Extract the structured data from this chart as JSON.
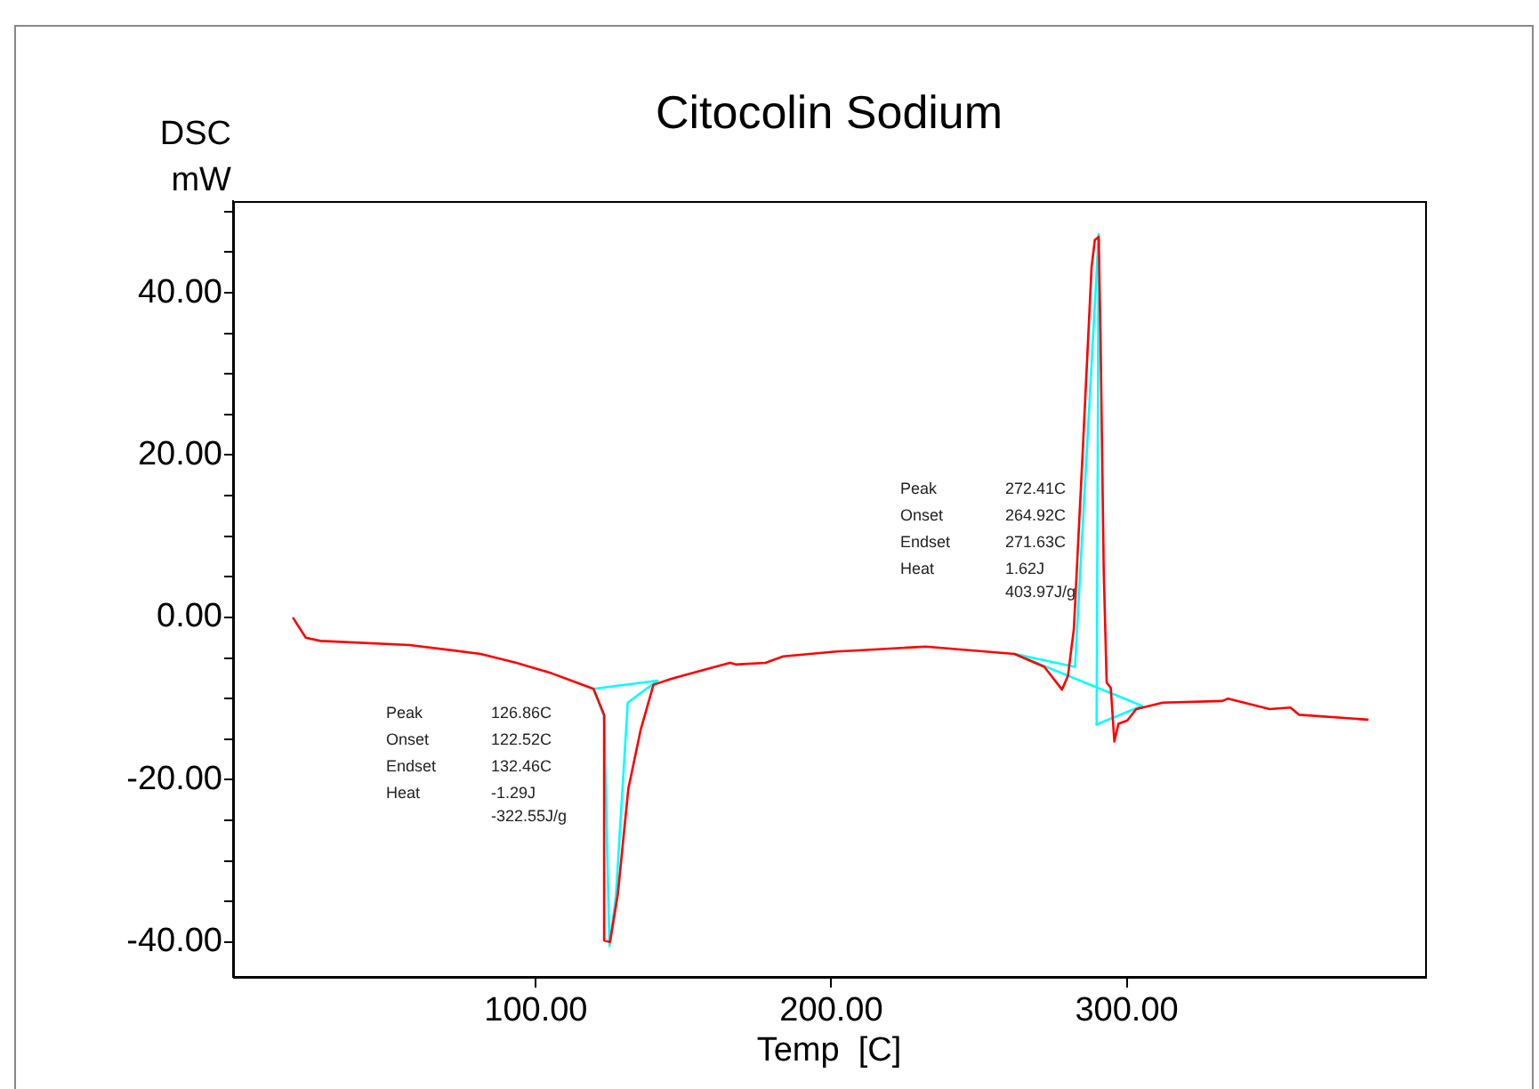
{
  "chart_data": {
    "type": "line",
    "title": "Citocolin Sodium",
    "xlabel": "Temp  [C]",
    "ylabel": "DSC\nmW",
    "xlim": [
      -2.5,
      401
    ],
    "xticks": [
      {
        "value": 100,
        "label": "100.00"
      },
      {
        "value": 200,
        "label": "200.00"
      },
      {
        "value": 300,
        "label": "300.00"
      }
    ],
    "ylim": [
      -44.3,
      51.3
    ],
    "yticks": [
      {
        "value": -40,
        "label": "-40.00"
      },
      {
        "value": -35,
        "label": null
      },
      {
        "value": -30,
        "label": null
      },
      {
        "value": -25,
        "label": null
      },
      {
        "value": -20,
        "label": "-20.00"
      },
      {
        "value": -15,
        "label": null
      },
      {
        "value": -10,
        "label": null
      },
      {
        "value": -5,
        "label": null
      },
      {
        "value": 0,
        "label": "0.00"
      },
      {
        "value": 5,
        "label": null
      },
      {
        "value": 10,
        "label": null
      },
      {
        "value": 15,
        "label": null
      },
      {
        "value": 20,
        "label": "20.00"
      },
      {
        "value": 25,
        "label": null
      },
      {
        "value": 30,
        "label": null
      },
      {
        "value": 35,
        "label": null
      },
      {
        "value": 40,
        "label": "40.00"
      },
      {
        "value": 45,
        "label": null
      },
      {
        "value": 50,
        "label": null
      }
    ],
    "grid": false,
    "legend": false,
    "marker": "none",
    "line_style": "solid",
    "series": [
      {
        "color": "#ff0000",
        "x": [
          17.9,
          22.1,
          27.1,
          57.2,
          81.3,
          93.4,
          105.4,
          119.5,
          123.1,
          123.1,
          125.1,
          127.7,
          131.3,
          135.5,
          139.8,
          145.6,
          149.6,
          157.6,
          165.7,
          167.7,
          177.7,
          183.7,
          201.8,
          207.8,
          231.9,
          262.0,
          272.1,
          278.1,
          280.1,
          282.1,
          285.1,
          288.1,
          289.2,
          290.5,
          291.1,
          292.2,
          293.2,
          294.6,
          295.8,
          297.2,
          300.2,
          303.2,
          312.2,
          332.4,
          334.3,
          348.4,
          355.4,
          358.4,
          381.5
        ],
        "values": [
          -0.1,
          -2.5,
          -2.9,
          -3.4,
          -4.5,
          -5.6,
          -6.9,
          -8.8,
          -12.0,
          -39.8,
          -40,
          -34.2,
          -21.1,
          -13.8,
          -8.3,
          -7.6,
          -7.2,
          -6.4,
          -5.6,
          -5.8,
          -5.6,
          -4.8,
          -4.2,
          -4.1,
          -3.6,
          -4.5,
          -6.1,
          -8.9,
          -7.2,
          -1.4,
          20.5,
          43.2,
          46.5,
          46.9,
          35.2,
          5.9,
          -8.0,
          -8.7,
          -15.3,
          -13.1,
          -12.7,
          -11.3,
          -10.5,
          -10.3,
          -10.0,
          -11.3,
          -11.1,
          -12.0,
          -12.6
        ]
      },
      {
        "color": "#00ffff",
        "x": [
          119.5,
          141.1
        ],
        "values": [
          -8.8,
          -7.8
        ]
      },
      {
        "color": "#00ffff",
        "x": [
          119.5,
          123.1,
          124.9,
          127.1,
          131.1,
          141.1
        ],
        "values": [
          -8.8,
          -12.2,
          -40.5,
          -34.3,
          -10.5,
          -7.8
        ]
      },
      {
        "color": "#00ffff",
        "x": [
          262.0,
          305.2
        ],
        "values": [
          -4.5,
          -10.9
        ]
      },
      {
        "color": "#00ffff",
        "x": [
          262.0,
          282.5,
          290.5
        ],
        "values": [
          -4.5,
          -6.1,
          47.2
        ]
      },
      {
        "color": "#00ffff",
        "x": [
          289.8,
          290.5
        ],
        "values": [
          -13.2,
          47.2
        ]
      },
      {
        "color": "#00ffff",
        "x": [
          289.8,
          305.2
        ],
        "values": [
          -13.2,
          -10.9
        ]
      }
    ],
    "annotations": [
      "Peak\t126.86C\nOnset\t122.52C\nEndset\t132.46C\nHeat\t-1.29J\n\t-322.55J/g",
      "Peak\t272.41C\nOnset\t264.92C\nEndset\t271.63C\nHeat\t1.62J\n\t403.97J/g"
    ]
  }
}
